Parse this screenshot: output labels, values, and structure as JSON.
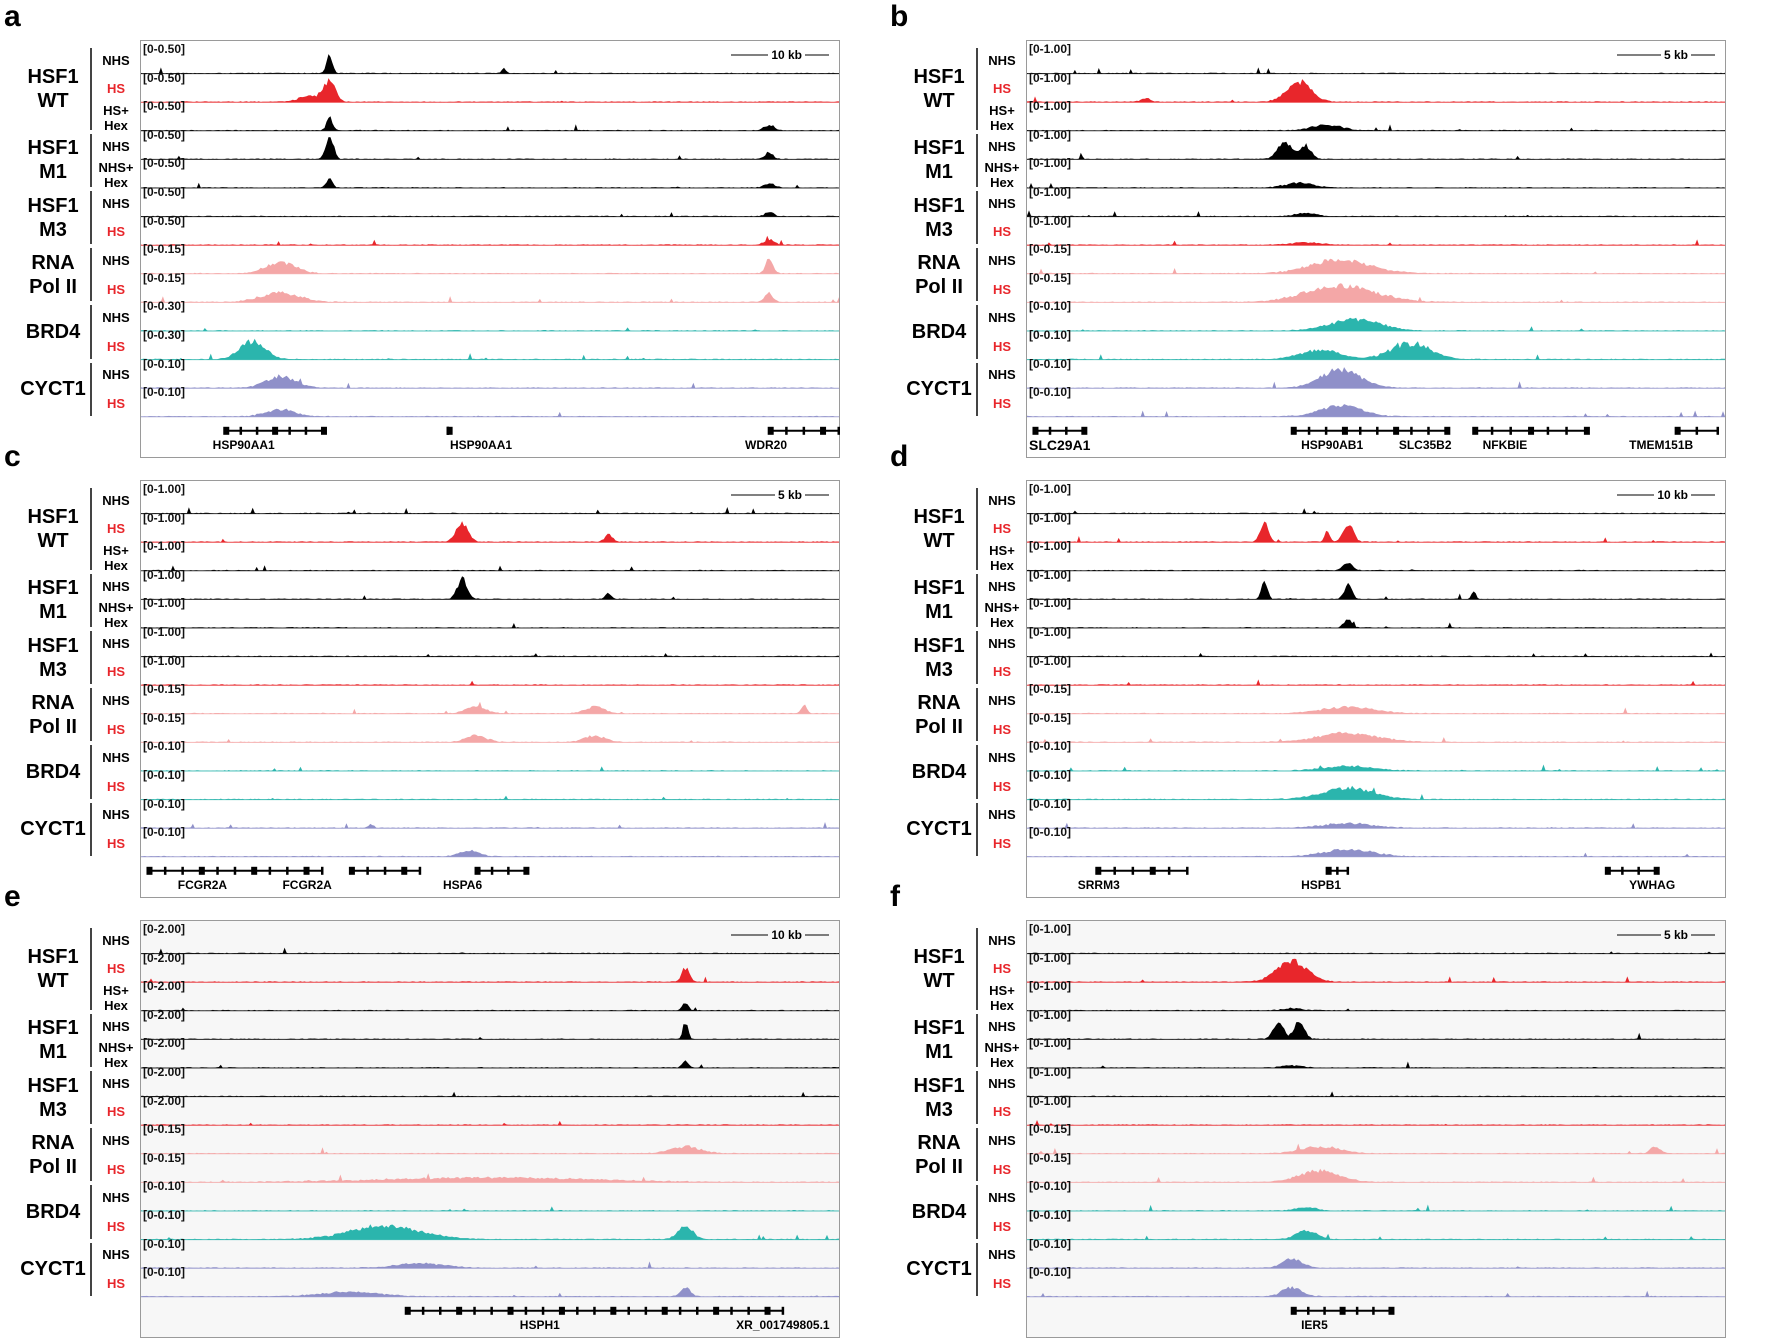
{
  "track_groups": [
    {
      "name": "HSF1\nWT",
      "conds": [
        "NHS",
        "HS",
        "HS+\nHex"
      ]
    },
    {
      "name": "HSF1\nM1",
      "conds": [
        "NHS",
        "NHS+\nHex"
      ]
    },
    {
      "name": "HSF1\nM3",
      "conds": [
        "NHS",
        "HS"
      ]
    },
    {
      "name": "RNA\nPol II",
      "conds": [
        "NHS",
        "HS"
      ]
    },
    {
      "name": "BRD4",
      "conds": [
        "NHS",
        "HS"
      ]
    },
    {
      "name": "CYCT1",
      "conds": [
        "NHS",
        "HS"
      ]
    }
  ],
  "colors": {
    "black": "#000000",
    "red": "#e8262b",
    "pink": "#f4a7a7",
    "teal": "#2bb5ad",
    "lavender": "#8f90c9",
    "hs_label": "#e8262b"
  },
  "track_colors": [
    "red_if_hs",
    "red_if_hs",
    "black",
    "black",
    "black",
    "black",
    "red",
    "pink",
    "pink",
    "teal",
    "teal",
    "lavender",
    "lavender"
  ],
  "panels": [
    {
      "letter": "a",
      "scale": "10 kb",
      "ranges": [
        "[0-0.50]",
        "[0-0.50]",
        "[0-0.50]",
        "[0-0.50]",
        "[0-0.50]",
        "[0-0.50]",
        "[0-0.50]",
        "[0-0.15]",
        "[0-0.15]",
        "[0-0.30]",
        "[0-0.30]",
        "[0-0.10]",
        "[0-0.10]"
      ],
      "genes": [
        "HSP90AA1",
        "HSP90AA1",
        "WDR20"
      ],
      "peaks": [
        [
          [
            0.27,
            0.9,
            0.006
          ],
          [
            0.52,
            0.2,
            0.004
          ]
        ],
        [
          [
            0.27,
            0.9,
            0.012
          ],
          [
            0.24,
            0.25,
            0.02
          ]
        ],
        [
          [
            0.27,
            0.6,
            0.006
          ],
          [
            0.9,
            0.25,
            0.01
          ]
        ],
        [
          [
            0.27,
            1.0,
            0.008
          ],
          [
            0.9,
            0.3,
            0.008
          ]
        ],
        [
          [
            0.27,
            0.4,
            0.006
          ],
          [
            0.9,
            0.2,
            0.01
          ]
        ],
        [
          [
            0.9,
            0.2,
            0.008
          ]
        ],
        [
          [
            0.9,
            0.25,
            0.01
          ]
        ],
        [
          [
            0.2,
            0.5,
            0.03
          ],
          [
            0.9,
            0.6,
            0.008
          ]
        ],
        [
          [
            0.2,
            0.4,
            0.04
          ],
          [
            0.9,
            0.4,
            0.008
          ]
        ],
        [],
        [
          [
            0.16,
            0.8,
            0.025
          ]
        ],
        [
          [
            0.2,
            0.5,
            0.03
          ]
        ],
        [
          [
            0.2,
            0.3,
            0.03
          ]
        ]
      ]
    },
    {
      "letter": "b",
      "scale": "5 kb",
      "ranges": [
        "[0-1.00]",
        "[0-1.00]",
        "[0-1.00]",
        "[0-1.00]",
        "[0-1.00]",
        "[0-1.00]",
        "[0-1.00]",
        "[0-0.15]",
        "[0-0.15]",
        "[0-0.10]",
        "[0-0.10]",
        "[0-0.10]",
        "[0-0.10]"
      ],
      "genes": [
        "SLC29A1",
        "HSP90AB1",
        "SLC35B2",
        "NFKBIE",
        "TMEM151B"
      ],
      "peaks": [
        [],
        [
          [
            0.39,
            0.9,
            0.025
          ],
          [
            0.17,
            0.15,
            0.01
          ]
        ],
        [
          [
            0.43,
            0.25,
            0.03
          ]
        ],
        [
          [
            0.37,
            0.8,
            0.015
          ],
          [
            0.4,
            0.6,
            0.01
          ]
        ],
        [
          [
            0.39,
            0.2,
            0.03
          ]
        ],
        [
          [
            0.4,
            0.15,
            0.02
          ]
        ],
        [
          [
            0.4,
            0.1,
            0.03
          ]
        ],
        [
          [
            0.45,
            0.6,
            0.06
          ]
        ],
        [
          [
            0.45,
            0.7,
            0.07
          ]
        ],
        [
          [
            0.47,
            0.5,
            0.05
          ]
        ],
        [
          [
            0.55,
            0.7,
            0.04
          ],
          [
            0.42,
            0.4,
            0.04
          ]
        ],
        [
          [
            0.45,
            0.8,
            0.04
          ]
        ],
        [
          [
            0.45,
            0.5,
            0.04
          ]
        ]
      ]
    },
    {
      "letter": "c",
      "scale": "5 kb",
      "ranges": [
        "[0-1.00]",
        "[0-1.00]",
        "[0-1.00]",
        "[0-1.00]",
        "[0-1.00]",
        "[0-1.00]",
        "[0-1.00]",
        "[0-0.15]",
        "[0-0.15]",
        "[0-0.10]",
        "[0-0.10]",
        "[0-0.10]",
        "[0-0.10]"
      ],
      "genes": [
        "FCGR2A",
        "FCGR2A",
        "HSPA6"
      ],
      "peaks": [
        [],
        [
          [
            0.46,
            0.85,
            0.012
          ],
          [
            0.67,
            0.3,
            0.008
          ]
        ],
        [],
        [
          [
            0.46,
            0.9,
            0.01
          ],
          [
            0.67,
            0.25,
            0.006
          ]
        ],
        [],
        [],
        [],
        [
          [
            0.48,
            0.3,
            0.02
          ],
          [
            0.65,
            0.3,
            0.02
          ],
          [
            0.95,
            0.4,
            0.006
          ]
        ],
        [
          [
            0.48,
            0.3,
            0.02
          ],
          [
            0.65,
            0.3,
            0.02
          ]
        ],
        [],
        [],
        [
          [
            0.33,
            0.15,
            0.005
          ]
        ],
        [
          [
            0.47,
            0.25,
            0.02
          ]
        ]
      ]
    },
    {
      "letter": "d",
      "scale": "10 kb",
      "ranges": [
        "[0-1.00]",
        "[0-1.00]",
        "[0-1.00]",
        "[0-1.00]",
        "[0-1.00]",
        "[0-1.00]",
        "[0-1.00]",
        "[0-0.15]",
        "[0-0.15]",
        "[0-0.10]",
        "[0-0.10]",
        "[0-0.10]",
        "[0-0.10]"
      ],
      "genes": [
        "SRRM3",
        "HSPB1",
        "YWHAG"
      ],
      "peaks": [
        [],
        [
          [
            0.34,
            0.9,
            0.008
          ],
          [
            0.46,
            0.8,
            0.01
          ],
          [
            0.43,
            0.5,
            0.005
          ]
        ],
        [
          [
            0.46,
            0.3,
            0.01
          ]
        ],
        [
          [
            0.34,
            0.8,
            0.006
          ],
          [
            0.46,
            0.6,
            0.008
          ],
          [
            0.64,
            0.35,
            0.004
          ]
        ],
        [
          [
            0.46,
            0.35,
            0.008
          ]
        ],
        [],
        [],
        [
          [
            0.46,
            0.3,
            0.05
          ]
        ],
        [
          [
            0.46,
            0.4,
            0.06
          ]
        ],
        [
          [
            0.46,
            0.2,
            0.05
          ]
        ],
        [
          [
            0.46,
            0.5,
            0.05
          ]
        ],
        [
          [
            0.46,
            0.2,
            0.05
          ]
        ],
        [
          [
            0.46,
            0.3,
            0.05
          ]
        ]
      ]
    },
    {
      "letter": "e",
      "scale": "10 kb",
      "ranges": [
        "[0-2.00]",
        "[0-2.00]",
        "[0-2.00]",
        "[0-2.00]",
        "[0-2.00]",
        "[0-2.00]",
        "[0-2.00]",
        "[0-0.15]",
        "[0-0.15]",
        "[0-0.10]",
        "[0-0.10]",
        "[0-0.10]",
        "[0-0.10]"
      ],
      "genes": [
        "HSPH1",
        "XR_001749805.1"
      ],
      "peaks": [
        [],
        [
          [
            0.78,
            0.6,
            0.008
          ]
        ],
        [
          [
            0.78,
            0.35,
            0.006
          ]
        ],
        [
          [
            0.78,
            0.8,
            0.005
          ]
        ],
        [
          [
            0.78,
            0.3,
            0.006
          ]
        ],
        [],
        [],
        [
          [
            0.78,
            0.3,
            0.03
          ]
        ],
        [
          [
            0.5,
            0.2,
            0.2
          ]
        ],
        [],
        [
          [
            0.35,
            0.6,
            0.07
          ],
          [
            0.78,
            0.6,
            0.015
          ]
        ],
        [
          [
            0.4,
            0.2,
            0.05
          ]
        ],
        [
          [
            0.78,
            0.4,
            0.01
          ],
          [
            0.3,
            0.2,
            0.06
          ]
        ]
      ]
    },
    {
      "letter": "f",
      "scale": "5 kb",
      "ranges": [
        "[0-1.00]",
        "[0-1.00]",
        "[0-1.00]",
        "[0-1.00]",
        "[0-1.00]",
        "[0-1.00]",
        "[0-1.00]",
        "[0-0.15]",
        "[0-0.15]",
        "[0-0.10]",
        "[0-0.10]",
        "[0-0.10]",
        "[0-0.10]"
      ],
      "genes": [
        "IER5"
      ],
      "peaks": [
        [],
        [
          [
            0.38,
            0.9,
            0.03
          ]
        ],
        [
          [
            0.38,
            0.1,
            0.02
          ]
        ],
        [
          [
            0.36,
            0.8,
            0.01
          ],
          [
            0.39,
            0.8,
            0.01
          ]
        ],
        [
          [
            0.38,
            0.1,
            0.02
          ]
        ],
        [],
        [],
        [
          [
            0.42,
            0.3,
            0.04
          ],
          [
            0.9,
            0.3,
            0.01
          ]
        ],
        [
          [
            0.42,
            0.5,
            0.04
          ]
        ],
        [
          [
            0.4,
            0.15,
            0.02
          ]
        ],
        [
          [
            0.4,
            0.4,
            0.02
          ]
        ],
        [
          [
            0.38,
            0.4,
            0.02
          ]
        ],
        [
          [
            0.38,
            0.4,
            0.02
          ]
        ]
      ]
    }
  ]
}
